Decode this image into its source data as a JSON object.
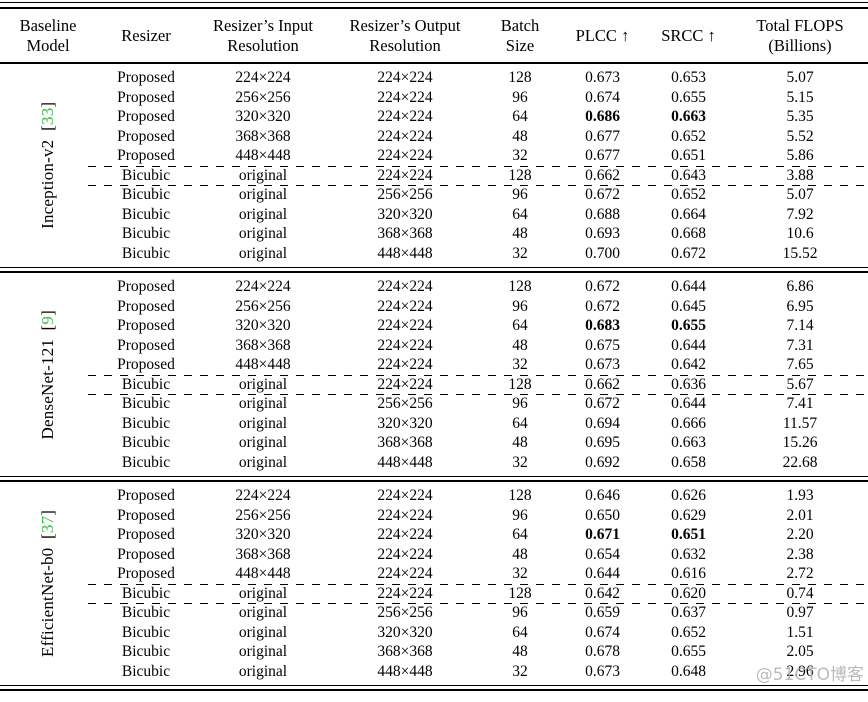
{
  "colors": {
    "citation_green": "#3dbe53",
    "rule_black": "#000000",
    "watermark_gray": "#afafaf"
  },
  "watermark": {
    "text": "@51CTO博客"
  },
  "table": {
    "headers": [
      {
        "label": "Baseline\nModel"
      },
      {
        "label": "Resizer"
      },
      {
        "label": "Resizer’s Input\nResolution"
      },
      {
        "label": "Resizer’s Output\nResolution"
      },
      {
        "label": "Batch\nSize"
      },
      {
        "label": "PLCC ↑"
      },
      {
        "label": "SRCC ↑"
      },
      {
        "label": "Total FLOPS\n(Billions)"
      }
    ],
    "sections": [
      {
        "model": "Inception-v2",
        "cite_open": "[",
        "cite_number": "33",
        "cite_close": "]",
        "rows": [
          {
            "resizer": "Proposed",
            "input": "224×224",
            "output": "224×224",
            "batch": "128",
            "plcc": "0.673",
            "srcc": "0.653",
            "flops": "5.07",
            "bold": false,
            "dashed_top": false
          },
          {
            "resizer": "Proposed",
            "input": "256×256",
            "output": "224×224",
            "batch": "96",
            "plcc": "0.674",
            "srcc": "0.655",
            "flops": "5.15",
            "bold": false,
            "dashed_top": false
          },
          {
            "resizer": "Proposed",
            "input": "320×320",
            "output": "224×224",
            "batch": "64",
            "plcc": "0.686",
            "srcc": "0.663",
            "flops": "5.35",
            "bold": true,
            "dashed_top": false
          },
          {
            "resizer": "Proposed",
            "input": "368×368",
            "output": "224×224",
            "batch": "48",
            "plcc": "0.677",
            "srcc": "0.652",
            "flops": "5.52",
            "bold": false,
            "dashed_top": false
          },
          {
            "resizer": "Proposed",
            "input": "448×448",
            "output": "224×224",
            "batch": "32",
            "plcc": "0.677",
            "srcc": "0.651",
            "flops": "5.86",
            "bold": false,
            "dashed_top": false
          },
          {
            "resizer": "Bicubic",
            "input": "original",
            "output": "224×224",
            "batch": "128",
            "plcc": "0.662",
            "srcc": "0.643",
            "flops": "3.88",
            "bold": false,
            "dashed_top": true
          },
          {
            "resizer": "Bicubic",
            "input": "original",
            "output": "256×256",
            "batch": "96",
            "plcc": "0.672",
            "srcc": "0.652",
            "flops": "5.07",
            "bold": false,
            "dashed_top": true
          },
          {
            "resizer": "Bicubic",
            "input": "original",
            "output": "320×320",
            "batch": "64",
            "plcc": "0.688",
            "srcc": "0.664",
            "flops": "7.92",
            "bold": false,
            "dashed_top": false
          },
          {
            "resizer": "Bicubic",
            "input": "original",
            "output": "368×368",
            "batch": "48",
            "plcc": "0.693",
            "srcc": "0.668",
            "flops": "10.6",
            "bold": false,
            "dashed_top": false
          },
          {
            "resizer": "Bicubic",
            "input": "original",
            "output": "448×448",
            "batch": "32",
            "plcc": "0.700",
            "srcc": "0.672",
            "flops": "15.52",
            "bold": false,
            "dashed_top": false
          }
        ]
      },
      {
        "model": "DenseNet-121",
        "cite_open": "[",
        "cite_number": "9",
        "cite_close": "]",
        "rows": [
          {
            "resizer": "Proposed",
            "input": "224×224",
            "output": "224×224",
            "batch": "128",
            "plcc": "0.672",
            "srcc": "0.644",
            "flops": "6.86",
            "bold": false,
            "dashed_top": false
          },
          {
            "resizer": "Proposed",
            "input": "256×256",
            "output": "224×224",
            "batch": "96",
            "plcc": "0.672",
            "srcc": "0.645",
            "flops": "6.95",
            "bold": false,
            "dashed_top": false
          },
          {
            "resizer": "Proposed",
            "input": "320×320",
            "output": "224×224",
            "batch": "64",
            "plcc": "0.683",
            "srcc": "0.655",
            "flops": "7.14",
            "bold": true,
            "dashed_top": false
          },
          {
            "resizer": "Proposed",
            "input": "368×368",
            "output": "224×224",
            "batch": "48",
            "plcc": "0.675",
            "srcc": "0.644",
            "flops": "7.31",
            "bold": false,
            "dashed_top": false
          },
          {
            "resizer": "Proposed",
            "input": "448×448",
            "output": "224×224",
            "batch": "32",
            "plcc": "0.673",
            "srcc": "0.642",
            "flops": "7.65",
            "bold": false,
            "dashed_top": false
          },
          {
            "resizer": "Bicubic",
            "input": "original",
            "output": "224×224",
            "batch": "128",
            "plcc": "0.662",
            "srcc": "0.636",
            "flops": "5.67",
            "bold": false,
            "dashed_top": true
          },
          {
            "resizer": "Bicubic",
            "input": "original",
            "output": "256×256",
            "batch": "96",
            "plcc": "0.672",
            "srcc": "0.644",
            "flops": "7.41",
            "bold": false,
            "dashed_top": true
          },
          {
            "resizer": "Bicubic",
            "input": "original",
            "output": "320×320",
            "batch": "64",
            "plcc": "0.694",
            "srcc": "0.666",
            "flops": "11.57",
            "bold": false,
            "dashed_top": false
          },
          {
            "resizer": "Bicubic",
            "input": "original",
            "output": "368×368",
            "batch": "48",
            "plcc": "0.695",
            "srcc": "0.663",
            "flops": "15.26",
            "bold": false,
            "dashed_top": false
          },
          {
            "resizer": "Bicubic",
            "input": "original",
            "output": "448×448",
            "batch": "32",
            "plcc": "0.692",
            "srcc": "0.658",
            "flops": "22.68",
            "bold": false,
            "dashed_top": false
          }
        ]
      },
      {
        "model": "EfficientNet-b0",
        "cite_open": "[",
        "cite_number": "37",
        "cite_close": "]",
        "rows": [
          {
            "resizer": "Proposed",
            "input": "224×224",
            "output": "224×224",
            "batch": "128",
            "plcc": "0.646",
            "srcc": "0.626",
            "flops": "1.93",
            "bold": false,
            "dashed_top": false
          },
          {
            "resizer": "Proposed",
            "input": "256×256",
            "output": "224×224",
            "batch": "96",
            "plcc": "0.650",
            "srcc": "0.629",
            "flops": "2.01",
            "bold": false,
            "dashed_top": false
          },
          {
            "resizer": "Proposed",
            "input": "320×320",
            "output": "224×224",
            "batch": "64",
            "plcc": "0.671",
            "srcc": "0.651",
            "flops": "2.20",
            "bold": true,
            "dashed_top": false
          },
          {
            "resizer": "Proposed",
            "input": "368×368",
            "output": "224×224",
            "batch": "48",
            "plcc": "0.654",
            "srcc": "0.632",
            "flops": "2.38",
            "bold": false,
            "dashed_top": false
          },
          {
            "resizer": "Proposed",
            "input": "448×448",
            "output": "224×224",
            "batch": "32",
            "plcc": "0.644",
            "srcc": "0.616",
            "flops": "2.72",
            "bold": false,
            "dashed_top": false
          },
          {
            "resizer": "Bicubic",
            "input": "original",
            "output": "224×224",
            "batch": "128",
            "plcc": "0.642",
            "srcc": "0.620",
            "flops": "0.74",
            "bold": false,
            "dashed_top": true
          },
          {
            "resizer": "Bicubic",
            "input": "original",
            "output": "256×256",
            "batch": "96",
            "plcc": "0.659",
            "srcc": "0.637",
            "flops": "0.97",
            "bold": false,
            "dashed_top": true
          },
          {
            "resizer": "Bicubic",
            "input": "original",
            "output": "320×320",
            "batch": "64",
            "plcc": "0.674",
            "srcc": "0.652",
            "flops": "1.51",
            "bold": false,
            "dashed_top": false
          },
          {
            "resizer": "Bicubic",
            "input": "original",
            "output": "368×368",
            "batch": "48",
            "plcc": "0.678",
            "srcc": "0.655",
            "flops": "2.05",
            "bold": false,
            "dashed_top": false
          },
          {
            "resizer": "Bicubic",
            "input": "original",
            "output": "448×448",
            "batch": "32",
            "plcc": "0.673",
            "srcc": "0.648",
            "flops": "2.96",
            "bold": false,
            "dashed_top": false
          }
        ]
      }
    ]
  }
}
